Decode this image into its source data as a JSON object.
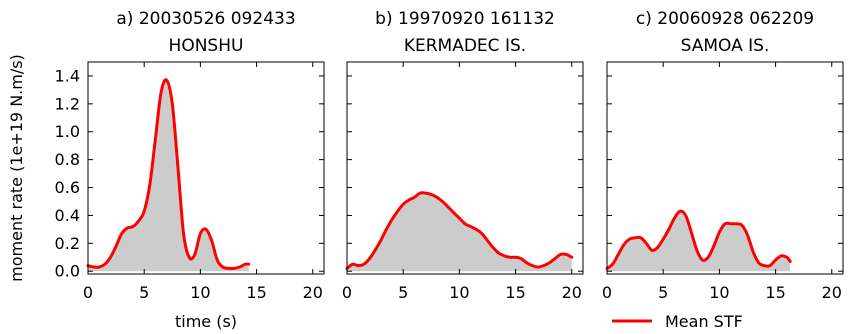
{
  "figure": {
    "ylabel": "moment rate (1e+19 N.m/s)",
    "xlabel": "time (s)",
    "legend": {
      "label": "Mean STF",
      "color": "#ff0000",
      "placement": "bottom-right (below panel c)"
    },
    "fill_color": "#cccccc",
    "line_color": "#ff0000"
  },
  "chart_data": [
    {
      "type": "area",
      "title_line1": "a) 20030526 092433",
      "title_line2": "HONSHU",
      "xlabel": "time (s)",
      "ylabel": "moment rate (1e+19 N.m/s)",
      "xlim": [
        0,
        21
      ],
      "ylim": [
        -0.02,
        1.5
      ],
      "xticks": [
        0,
        5,
        10,
        15,
        20
      ],
      "yticks": [
        0.0,
        0.2,
        0.4,
        0.6,
        0.8,
        1.0,
        1.2,
        1.4
      ],
      "series": [
        {
          "name": "Mean STF",
          "x": [
            0,
            0.5,
            1,
            1.5,
            2,
            2.5,
            3,
            3.5,
            4,
            4.5,
            5,
            5.5,
            6,
            6.5,
            7,
            7.5,
            8,
            8.5,
            9,
            9.5,
            10,
            10.5,
            11,
            11.5,
            12,
            12.5,
            13,
            13.5,
            14,
            14.3
          ],
          "y": [
            0.04,
            0.03,
            0.03,
            0.05,
            0.1,
            0.18,
            0.27,
            0.31,
            0.32,
            0.36,
            0.43,
            0.62,
            0.95,
            1.28,
            1.37,
            1.2,
            0.75,
            0.27,
            0.1,
            0.12,
            0.27,
            0.3,
            0.22,
            0.08,
            0.03,
            0.02,
            0.02,
            0.03,
            0.05,
            0.05
          ]
        }
      ]
    },
    {
      "type": "area",
      "title_line1": "b) 19970920 161132",
      "title_line2": "KERMADEC IS.",
      "xlim": [
        0,
        21
      ],
      "ylim": [
        -0.02,
        1.5
      ],
      "xticks": [
        0,
        5,
        10,
        15,
        20
      ],
      "yticks": [
        0.0,
        0.2,
        0.4,
        0.6,
        0.8,
        1.0,
        1.2,
        1.4
      ],
      "series": [
        {
          "name": "Mean STF",
          "x": [
            0,
            0.5,
            1,
            1.5,
            2,
            2.5,
            3,
            3.5,
            4,
            4.5,
            5,
            5.5,
            6,
            6.5,
            7,
            7.5,
            8,
            8.5,
            9,
            9.5,
            10,
            10.5,
            11,
            11.5,
            12,
            12.5,
            13,
            13.5,
            14,
            14.5,
            15,
            15.5,
            16,
            16.5,
            17,
            17.5,
            18,
            18.5,
            19,
            19.5,
            20
          ],
          "y": [
            0.02,
            0.05,
            0.04,
            0.05,
            0.09,
            0.15,
            0.22,
            0.3,
            0.37,
            0.43,
            0.48,
            0.51,
            0.53,
            0.56,
            0.56,
            0.55,
            0.53,
            0.5,
            0.46,
            0.42,
            0.38,
            0.34,
            0.32,
            0.3,
            0.27,
            0.22,
            0.17,
            0.13,
            0.11,
            0.1,
            0.1,
            0.09,
            0.06,
            0.04,
            0.03,
            0.04,
            0.06,
            0.09,
            0.12,
            0.12,
            0.1
          ]
        }
      ]
    },
    {
      "type": "area",
      "title_line1": "c) 20060928 062209",
      "title_line2": "SAMOA IS.",
      "xlim": [
        0,
        21
      ],
      "ylim": [
        -0.02,
        1.5
      ],
      "xticks": [
        0,
        5,
        10,
        15,
        20
      ],
      "yticks": [
        0.0,
        0.2,
        0.4,
        0.6,
        0.8,
        1.0,
        1.2,
        1.4
      ],
      "series": [
        {
          "name": "Mean STF",
          "x": [
            0,
            0.5,
            1,
            1.5,
            2,
            2.5,
            3,
            3.5,
            4,
            4.5,
            5,
            5.5,
            6,
            6.5,
            7,
            7.5,
            8,
            8.5,
            9,
            9.5,
            10,
            10.5,
            11,
            11.5,
            12,
            12.5,
            13,
            13.5,
            14,
            14.5,
            15,
            15.5,
            16,
            16.3
          ],
          "y": [
            0.02,
            0.05,
            0.12,
            0.19,
            0.23,
            0.24,
            0.24,
            0.2,
            0.15,
            0.17,
            0.23,
            0.3,
            0.38,
            0.43,
            0.4,
            0.28,
            0.15,
            0.08,
            0.1,
            0.18,
            0.28,
            0.34,
            0.34,
            0.34,
            0.33,
            0.26,
            0.14,
            0.06,
            0.04,
            0.04,
            0.08,
            0.11,
            0.1,
            0.07
          ]
        }
      ]
    }
  ]
}
